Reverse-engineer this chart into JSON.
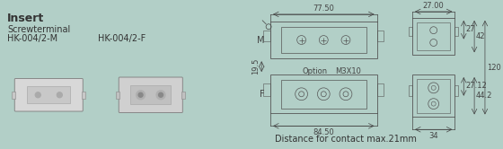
{
  "bg_color": "#b2cfc7",
  "title": "Insert",
  "subtitle": "Screwterminal",
  "label_m": "HK-004/2-M",
  "label_f": "HK-004/2-F",
  "dim_77_50": "77.50",
  "dim_27_00": "27.00",
  "dim_84_50": "84.50",
  "dim_34": "34",
  "dim_19_5": "19.5",
  "dim_27": "27",
  "dim_42": "42",
  "dim_120": "120",
  "dim_27_12": "27.12",
  "dim_44_2": "44.2",
  "dim_m3x10": "M3X10",
  "dim_option": "Option",
  "label_M": "M",
  "label_F": "F",
  "bottom_text": "Distance for contact max.21mm",
  "title_fontsize": 9,
  "body_fontsize": 7,
  "dim_fontsize": 6,
  "line_color": "#555555",
  "dim_color": "#444444",
  "lw": 0.6
}
